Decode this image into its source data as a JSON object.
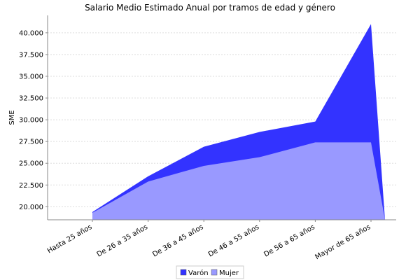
{
  "chart_data": {
    "type": "area",
    "title": "Salario Medio Estimado Anual por tramos de edad y género",
    "xlabel": "",
    "ylabel": "SME",
    "categories": [
      "Hasta 25  años",
      "De 26  a 35  años",
      "De 36  a 45  años",
      "De 46  a 55  años",
      "De 56  a 65  años",
      "Mayor de 65  años"
    ],
    "series": [
      {
        "name": "Varón",
        "color": "#3333ff",
        "values": [
          19400,
          23500,
          26900,
          28600,
          29800,
          41000
        ]
      },
      {
        "name": "Mujer",
        "color": "#9999ff",
        "values": [
          19300,
          22900,
          24700,
          25700,
          27400,
          27400
        ]
      }
    ],
    "ylim": [
      18500,
      42000
    ],
    "yticks": [
      20000,
      22500,
      25000,
      27500,
      30000,
      32500,
      35000,
      37500,
      40000
    ],
    "ytick_labels": [
      "20.000",
      "22.500",
      "25.000",
      "27.500",
      "30.000",
      "32.500",
      "35.000",
      "37.500",
      "40.000"
    ],
    "grid": true,
    "legend_position": "bottom"
  }
}
